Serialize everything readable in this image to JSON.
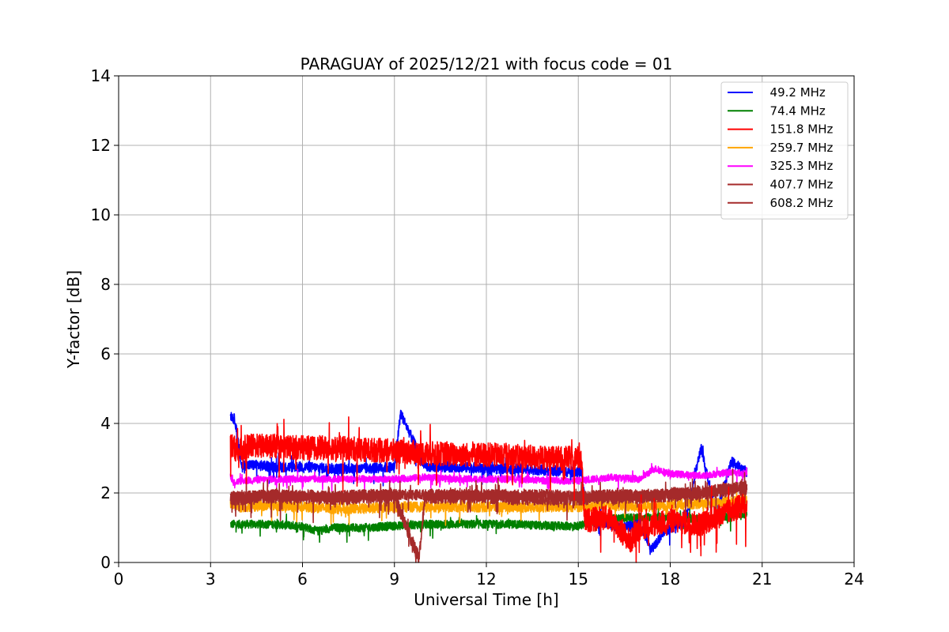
{
  "chart_data": {
    "type": "line",
    "title": "PARAGUAY of 2025/12/21 with focus code = 01",
    "xlabel": "Universal Time [h]",
    "ylabel": "Y-factor [dB]",
    "xlim": [
      0,
      24
    ],
    "ylim": [
      0,
      14
    ],
    "xticks": [
      0,
      3,
      6,
      9,
      12,
      15,
      18,
      21,
      24
    ],
    "xtick_labels": [
      "0",
      "3",
      "6",
      "9",
      "12",
      "15",
      "18",
      "21",
      "24"
    ],
    "yticks": [
      0,
      2,
      4,
      6,
      8,
      10,
      12,
      14
    ],
    "ytick_labels": [
      "0",
      "2",
      "4",
      "6",
      "8",
      "10",
      "12",
      "14"
    ],
    "grid": true,
    "legend_position": "top-right",
    "series": [
      {
        "name": " 49.2 MHz",
        "label": "  49.2 MHz",
        "color": "#0000ff",
        "x": [
          3.65,
          3.8,
          4.0,
          4.5,
          5.0,
          6.0,
          7.0,
          8.0,
          9.0,
          9.2,
          10.0,
          11.0,
          12.0,
          13.0,
          14.0,
          15.0,
          15.1,
          15.3,
          16.0,
          16.5,
          17.0,
          17.4,
          17.8,
          18.5,
          19.0,
          19.5,
          20.0,
          20.5
        ],
        "y": [
          4.25,
          4.1,
          2.8,
          2.8,
          2.75,
          2.75,
          2.7,
          2.7,
          2.75,
          4.3,
          2.75,
          2.75,
          2.7,
          2.7,
          2.65,
          2.6,
          2.6,
          1.2,
          1.1,
          1.0,
          1.1,
          0.4,
          0.9,
          1.2,
          3.3,
          1.4,
          2.9,
          2.6
        ],
        "noise": 0.15
      },
      {
        "name": " 74.4 MHz",
        "label": "  74.4 MHz",
        "color": "#008000",
        "x": [
          3.65,
          4.0,
          5.0,
          6.0,
          6.5,
          7.0,
          8.0,
          9.0,
          10.0,
          11.0,
          12.0,
          13.0,
          14.0,
          15.0,
          16.0,
          17.0,
          18.0,
          19.0,
          20.0,
          20.5
        ],
        "y": [
          1.1,
          1.1,
          1.1,
          1.05,
          0.9,
          1.0,
          1.0,
          1.05,
          1.1,
          1.1,
          1.1,
          1.1,
          1.05,
          1.05,
          1.25,
          1.3,
          1.3,
          1.25,
          1.35,
          1.4
        ],
        "noise": 0.12
      },
      {
        "name": "151.8 MHz",
        "label": "  151.8 MHz",
        "color": "#ff0000",
        "x": [
          3.65,
          3.9,
          4.2,
          5.0,
          6.0,
          7.0,
          8.0,
          9.0,
          10.0,
          11.0,
          12.0,
          13.0,
          14.0,
          15.0,
          15.1,
          15.2,
          16.0,
          16.7,
          17.0,
          18.0,
          19.0,
          20.0,
          20.5
        ],
        "y": [
          3.4,
          3.2,
          3.35,
          3.35,
          3.3,
          3.3,
          3.25,
          3.2,
          3.15,
          3.1,
          3.1,
          3.05,
          3.0,
          3.0,
          3.1,
          1.2,
          1.3,
          0.6,
          1.0,
          1.2,
          1.1,
          1.5,
          1.7
        ],
        "noise": 0.35
      },
      {
        "name": "259.7 MHz",
        "label": "  259.7 MHz",
        "color": "#ffa500",
        "x": [
          3.65,
          4.0,
          5.0,
          6.0,
          7.0,
          8.0,
          9.0,
          10.0,
          11.0,
          12.0,
          13.0,
          14.0,
          15.0,
          16.0,
          17.0,
          18.0,
          19.0,
          20.0,
          20.5
        ],
        "y": [
          1.7,
          1.6,
          1.65,
          1.6,
          1.55,
          1.55,
          1.6,
          1.6,
          1.6,
          1.6,
          1.6,
          1.6,
          1.6,
          1.65,
          1.6,
          1.65,
          1.7,
          1.75,
          1.8
        ],
        "noise": 0.15
      },
      {
        "name": "325.3 MHz",
        "label": "  325.3 MHz",
        "color": "#ff00ff",
        "x": [
          3.65,
          3.75,
          4.0,
          5.0,
          6.0,
          7.0,
          8.0,
          9.0,
          10.0,
          11.0,
          12.0,
          13.0,
          14.0,
          15.0,
          16.0,
          17.0,
          17.5,
          18.0,
          19.0,
          20.0,
          20.5
        ],
        "y": [
          2.5,
          2.3,
          2.35,
          2.4,
          2.4,
          2.4,
          2.4,
          2.4,
          2.45,
          2.4,
          2.4,
          2.4,
          2.35,
          2.35,
          2.45,
          2.4,
          2.7,
          2.55,
          2.5,
          2.6,
          2.55
        ],
        "noise": 0.1
      },
      {
        "name": "407.7 MHz",
        "label": "  407.7 MHz",
        "color": "#a52a2a",
        "x": [
          3.65,
          4.0,
          5.0,
          6.0,
          7.0,
          8.0,
          9.0,
          10.0,
          11.0,
          12.0,
          13.0,
          14.0,
          15.0,
          16.0,
          17.0,
          18.0,
          19.0,
          20.0,
          20.5
        ],
        "y": [
          1.9,
          1.9,
          1.95,
          1.9,
          1.9,
          1.95,
          1.95,
          1.95,
          1.95,
          1.95,
          1.95,
          1.95,
          1.9,
          1.95,
          1.9,
          2.0,
          2.0,
          2.15,
          2.2
        ],
        "noise": 0.15
      },
      {
        "name": "608.2 MHz",
        "label": "  608.2 MHz",
        "color": "#a52a2a",
        "x": [
          3.65,
          4.0,
          5.0,
          6.0,
          7.0,
          8.0,
          9.0,
          9.8,
          10.0,
          11.0,
          12.0,
          13.0,
          14.0,
          15.0,
          16.0,
          17.0,
          18.0,
          19.0,
          20.0,
          20.5
        ],
        "y": [
          1.85,
          1.85,
          1.9,
          1.9,
          1.85,
          1.9,
          1.9,
          0.1,
          1.9,
          1.9,
          1.9,
          1.85,
          1.85,
          1.85,
          1.9,
          1.9,
          1.95,
          2.0,
          2.1,
          2.15
        ],
        "noise": 0.2
      }
    ]
  }
}
